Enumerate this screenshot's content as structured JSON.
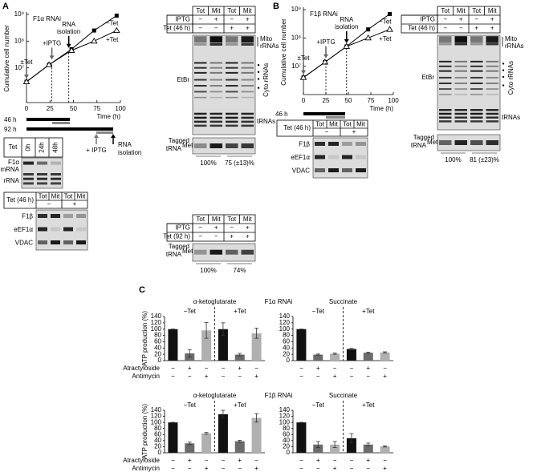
{
  "panel_a": {
    "label": "A",
    "timeline": {
      "bars": [
        "46 h",
        "92 h"
      ],
      "iptg": "+ IPTG",
      "isolation": [
        "RNA",
        "isolation"
      ]
    },
    "northern": {
      "header": "Tet",
      "lanes": [
        "0h",
        "24h",
        "48h"
      ],
      "rows": [
        "F1α",
        "mRNA",
        "rRNA"
      ]
    },
    "western": {
      "header": "Tet (46 h)",
      "cols": [
        "Tot",
        "Mit",
        "Tot",
        "Mit"
      ],
      "signs": [
        "−",
        "+"
      ],
      "rows": [
        "F1β",
        "eEF1α",
        "VDAC"
      ]
    },
    "gel": {
      "cols": [
        "Tot",
        "Mit",
        "Tot",
        "Mit"
      ],
      "rows": [
        {
          "name": "IPTG",
          "signs": [
            "−",
            "+",
            "−",
            "+"
          ]
        },
        {
          "name": "Tet (46 h)",
          "signs": [
            "−",
            "−",
            "+",
            "+"
          ]
        }
      ],
      "stain": "EtBr",
      "mito": [
        "Mito",
        "rRNAs"
      ],
      "cyto": "Cyto rRNAs",
      "trna": "tRNAs",
      "tagged": [
        "Tagged",
        "tRNA",
        "Met"
      ],
      "quant": [
        "100%",
        "75 (±13)%"
      ]
    },
    "gel2": {
      "cols": [
        "Tot",
        "Mit",
        "Tot",
        "Mit"
      ],
      "rows": [
        {
          "name": "IPTG",
          "signs": [
            "−",
            "+",
            "−",
            "+"
          ]
        },
        {
          "name": "Tet (92 h)",
          "signs": [
            "−",
            "−",
            "+",
            "+"
          ]
        }
      ],
      "tagged": [
        "Tagged",
        "tRNA",
        "Met"
      ],
      "quant": [
        "100%",
        "74%"
      ]
    }
  },
  "panel_b": {
    "label": "B",
    "timeline": {
      "bars": [
        "46 h"
      ]
    },
    "western": {
      "header": "Tet (46 h)",
      "cols": [
        "Tot",
        "Mit",
        "Tot",
        "Mit"
      ],
      "signs": [
        "−",
        "+"
      ],
      "rows": [
        "F1β",
        "eEF1α",
        "VDAC"
      ]
    },
    "gel": {
      "cols": [
        "Tot",
        "Mit",
        "Tot",
        "Mit"
      ],
      "rows": [
        {
          "name": "IPTG",
          "signs": [
            "−",
            "+",
            "−",
            "+"
          ]
        },
        {
          "name": "Tet (46 h)",
          "signs": [
            "−",
            "−",
            "+",
            "+"
          ]
        }
      ],
      "stain": "EtBr",
      "mito": [
        "Mito",
        "rRNAs"
      ],
      "cyto": "Cyto rRNAs",
      "trna": "tRNAs",
      "tagged": [
        "Tagged",
        "tRNA",
        "Met"
      ],
      "quant": [
        "100%",
        "81 (±23)%"
      ]
    }
  },
  "panel_c": {
    "label": "C",
    "headings": [
      "F1α RNAi",
      "F1β RNAi"
    ]
  },
  "chart_data": [
    {
      "type": "line",
      "title": "F1α RNAi",
      "xlabel": "Time (h)",
      "ylabel": "Cumulative cell number",
      "x": [
        0,
        24,
        48,
        72,
        96
      ],
      "xlim": [
        0,
        100
      ],
      "xticks": [
        0,
        25,
        50,
        75,
        100
      ],
      "ylim": [
        500000,
        1000000000
      ],
      "log_y": true,
      "yticks": [
        {
          "value": 10000000,
          "label": "10⁷"
        },
        {
          "value": 100000000,
          "label": "10⁸"
        },
        {
          "value": 1000000000,
          "label": "10⁹"
        }
      ],
      "series": [
        {
          "name": "−Tet",
          "color": "#000000",
          "marker": "square",
          "values": [
            3000000,
            13000000,
            50000000,
            250000000,
            900000000
          ]
        },
        {
          "name": "+Tet",
          "color": "#000000",
          "marker": "open-triangle",
          "values": [
            3000000,
            13000000,
            45000000,
            100000000,
            250000000
          ]
        }
      ],
      "annotations": [
        {
          "lines": [
            "±Tet"
          ],
          "x": 0,
          "dashed": false
        },
        {
          "lines": [
            "+IPTG"
          ],
          "x": 27,
          "dashed": true
        },
        {
          "lines": [
            "RNA",
            "isolation"
          ],
          "x": 45,
          "dashed": true
        }
      ]
    },
    {
      "type": "line",
      "title": "F1β RNAi",
      "xlabel": "Time (h)",
      "ylabel": "Cumulative cell number",
      "x": [
        0,
        24,
        48,
        72,
        96
      ],
      "xlim": [
        0,
        100
      ],
      "xticks": [
        0,
        25,
        50,
        75,
        100
      ],
      "ylim": [
        1000000,
        1000000000
      ],
      "log_y": true,
      "yticks": [
        {
          "value": 10000000,
          "label": "10⁷"
        },
        {
          "value": 100000000,
          "label": "10⁸"
        },
        {
          "value": 1000000000,
          "label": "10⁹"
        }
      ],
      "series": [
        {
          "name": "−Tet",
          "color": "#000000",
          "marker": "square",
          "values": [
            4000000,
            14000000,
            50000000,
            200000000,
            700000000
          ]
        },
        {
          "name": "+Tet",
          "color": "#000000",
          "marker": "open-triangle",
          "values": [
            4000000,
            14000000,
            50000000,
            100000000,
            200000000
          ]
        }
      ],
      "annotations": [
        {
          "lines": [
            "±Tet"
          ],
          "x": 0,
          "dashed": false
        },
        {
          "lines": [
            "+IPTG"
          ],
          "x": 25,
          "dashed": true
        },
        {
          "lines": [
            "RNA",
            "isolation"
          ],
          "x": 48,
          "dashed": true
        }
      ]
    },
    {
      "type": "bar",
      "title": "α-ketoglutarate",
      "ylabel": "ATP production (%)",
      "groups": [
        "−Tet",
        "+Tet"
      ],
      "values": [
        100,
        23,
        96,
        100,
        19,
        87
      ],
      "errors": [
        0,
        12,
        25,
        20,
        4,
        16
      ],
      "colors": [
        "#111111",
        "#6b6b6b",
        "#b0b0b0",
        "#111111",
        "#6b6b6b",
        "#b0b0b0"
      ],
      "ylim": [
        0,
        140
      ],
      "yticks": [
        0,
        20,
        40,
        60,
        80,
        100,
        120,
        140
      ],
      "rows": [
        {
          "name": "Atractyloside",
          "signs": [
            "−",
            "+",
            "−",
            "−",
            "+",
            "−"
          ]
        },
        {
          "name": "Antimycin",
          "signs": [
            "−",
            "−",
            "+",
            "−",
            "−",
            "+"
          ]
        }
      ]
    },
    {
      "type": "bar",
      "title": "Succinate",
      "groups": [
        "−Tet",
        "+Tet"
      ],
      "values": [
        100,
        19,
        22,
        37,
        25,
        26
      ],
      "errors": [
        0,
        2,
        2,
        2,
        2,
        2
      ],
      "colors": [
        "#111111",
        "#6b6b6b",
        "#b0b0b0",
        "#111111",
        "#6b6b6b",
        "#b0b0b0"
      ],
      "ylim": [
        0,
        140
      ],
      "yticks": [
        0,
        20,
        40,
        60,
        80,
        100,
        120,
        140
      ],
      "rows": [
        {
          "signs": [
            "−",
            "+",
            "−",
            "−",
            "+",
            "−"
          ]
        },
        {
          "signs": [
            "−",
            "−",
            "+",
            "−",
            "−",
            "+"
          ]
        }
      ]
    },
    {
      "type": "bar",
      "title": "α-ketoglutarate",
      "ylabel": "ATP production (%)",
      "groups": [
        "−Tet",
        "+Tet"
      ],
      "values": [
        100,
        31,
        64,
        127,
        38,
        115
      ],
      "errors": [
        0,
        4,
        3,
        13,
        3,
        14
      ],
      "colors": [
        "#111111",
        "#6b6b6b",
        "#b0b0b0",
        "#111111",
        "#6b6b6b",
        "#b0b0b0"
      ],
      "ylim": [
        0,
        140
      ],
      "yticks": [
        0,
        20,
        40,
        60,
        80,
        100,
        120,
        140
      ],
      "rows": [
        {
          "name": "Atractyloside",
          "signs": [
            "−",
            "+",
            "−",
            "−",
            "+",
            "−"
          ]
        },
        {
          "name": "Antimycin",
          "signs": [
            "−",
            "−",
            "+",
            "−",
            "−",
            "+"
          ]
        }
      ]
    },
    {
      "type": "bar",
      "title": "Succinate",
      "groups": [
        "−Tet",
        "+Tet"
      ],
      "values": [
        100,
        27,
        27,
        48,
        27,
        21
      ],
      "errors": [
        0,
        10,
        10,
        15,
        5,
        2
      ],
      "colors": [
        "#111111",
        "#6b6b6b",
        "#b0b0b0",
        "#111111",
        "#6b6b6b",
        "#b0b0b0"
      ],
      "ylim": [
        0,
        140
      ],
      "yticks": [
        0,
        20,
        40,
        60,
        80,
        100,
        120,
        140
      ],
      "rows": [
        {
          "signs": [
            "−",
            "+",
            "−",
            "−",
            "+",
            "−"
          ]
        },
        {
          "signs": [
            "−",
            "−",
            "+",
            "−",
            "−",
            "+"
          ]
        }
      ]
    }
  ]
}
